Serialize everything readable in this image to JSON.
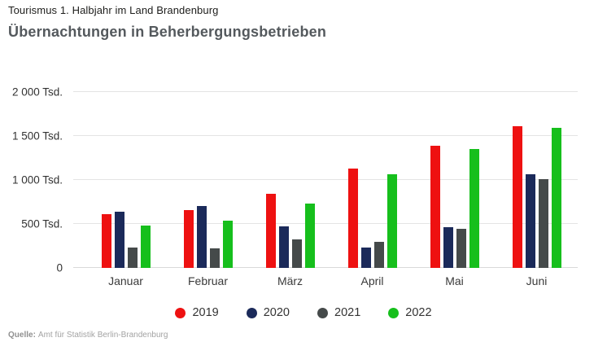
{
  "header": {
    "kicker": "Tourismus 1. Halbjahr im Land Brandenburg",
    "title": "Übernachtungen in Beherbergungsbetrieben"
  },
  "chart_data": {
    "type": "bar",
    "title": "Übernachtungen in Beherbergungsbetrieben",
    "subtitle": "Tourismus 1. Halbjahr im Land Brandenburg",
    "unit": "Tsd.",
    "categories": [
      "Januar",
      "Februar",
      "März",
      "April",
      "Mai",
      "Juni"
    ],
    "series": [
      {
        "name": "2019",
        "color": "#ee1111",
        "values": [
          610,
          660,
          840,
          1130,
          1390,
          1610
        ]
      },
      {
        "name": "2020",
        "color": "#1b2a5a",
        "values": [
          635,
          700,
          470,
          235,
          465,
          1065
        ]
      },
      {
        "name": "2021",
        "color": "#454a4a",
        "values": [
          230,
          225,
          320,
          295,
          440,
          1005
        ]
      },
      {
        "name": "2022",
        "color": "#16bf1c",
        "values": [
          480,
          540,
          730,
          1065,
          1350,
          1590
        ]
      }
    ],
    "ylim": [
      0,
      2000
    ],
    "yticks": [
      {
        "value": 0,
        "label": "0"
      },
      {
        "value": 500,
        "label": "500 Tsd."
      },
      {
        "value": 1000,
        "label": "1 000 Tsd."
      },
      {
        "value": 1500,
        "label": "1 500 Tsd."
      },
      {
        "value": 2000,
        "label": "2 000 Tsd."
      }
    ],
    "grid": true,
    "legend_position": "bottom"
  },
  "footer": {
    "source_label": "Quelle:",
    "source_text": "Amt für Statistik Berlin-Brandenburg"
  }
}
